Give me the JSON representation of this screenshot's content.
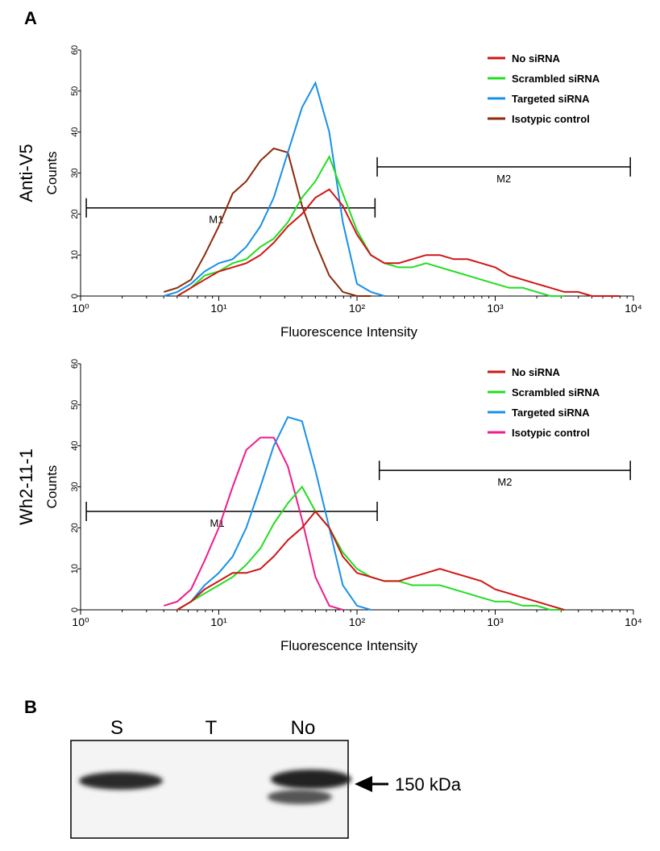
{
  "panel_a_label": "A",
  "panel_b_label": "B",
  "chart_data": [
    {
      "type": "line",
      "side_label": "Anti-V5",
      "y_label": "Counts",
      "x_label": "Fluorescence Intensity",
      "log_x": true,
      "legend": "upper right",
      "xlim": [
        1,
        10000
      ],
      "ylim": [
        0,
        60
      ],
      "xticks": [
        {
          "value": 1,
          "label": "10⁰"
        },
        {
          "value": 10,
          "label": "10¹"
        },
        {
          "value": 100,
          "label": "10²"
        },
        {
          "value": 1000,
          "label": "10³"
        },
        {
          "value": 10000,
          "label": "10⁴"
        }
      ],
      "yticks": [
        0,
        10,
        20,
        30,
        40,
        50,
        60
      ],
      "x": [
        4,
        5,
        6.3,
        7.9,
        10,
        12.6,
        15.8,
        20,
        25,
        31.6,
        40,
        50,
        63,
        79,
        100,
        126,
        158,
        200,
        251,
        316,
        398,
        501,
        631,
        794,
        1000,
        1259,
        1585,
        1995,
        2512,
        3162,
        3981,
        5012,
        6310,
        7943
      ],
      "series": [
        {
          "name": "No siRNA",
          "color": "#d01515",
          "values": [
            null,
            0,
            2,
            4,
            6,
            7,
            8,
            10,
            13,
            17,
            20,
            24,
            26,
            22,
            15,
            10,
            8,
            8,
            9,
            10,
            10,
            9,
            9,
            8,
            7,
            5,
            4,
            3,
            2,
            1,
            1,
            0,
            0,
            0
          ]
        },
        {
          "name": "Scrambled siRNA",
          "color": "#22dd22",
          "values": [
            null,
            0,
            2,
            5,
            6,
            8,
            9,
            12,
            14,
            18,
            24,
            28,
            34,
            25,
            16,
            10,
            8,
            7,
            7,
            8,
            7,
            6,
            5,
            4,
            3,
            2,
            2,
            1,
            0,
            0,
            null,
            null,
            null,
            null
          ]
        },
        {
          "name": "Targeted siRNA",
          "color": "#1890e8",
          "values": [
            0,
            1,
            3,
            6,
            8,
            9,
            12,
            17,
            24,
            35,
            46,
            52,
            40,
            18,
            3,
            1,
            0,
            null,
            null,
            null,
            null,
            null,
            null,
            null,
            null,
            null,
            null,
            null,
            null,
            null,
            null,
            null,
            null,
            null
          ]
        },
        {
          "name": "Isotypic control",
          "color": "#8b2a0a",
          "values": [
            1,
            2,
            4,
            10,
            17,
            25,
            28,
            33,
            36,
            35,
            22,
            13,
            5,
            1,
            0,
            0,
            null,
            null,
            null,
            null,
            null,
            null,
            null,
            null,
            null,
            null,
            null,
            null,
            null,
            null,
            null,
            null,
            null,
            null
          ]
        }
      ],
      "markers": [
        {
          "label": "M1",
          "range": [
            1.1,
            135
          ],
          "y": 21.5
        },
        {
          "label": "M2",
          "range": [
            140,
            9500
          ],
          "y": 31.5
        }
      ]
    },
    {
      "type": "line",
      "side_label": "Wh2-11-1",
      "y_label": "Counts",
      "x_label": "Fluorescence Intensity",
      "log_x": true,
      "legend": "upper right",
      "xlim": [
        1,
        10000
      ],
      "ylim": [
        0,
        60
      ],
      "xticks": [
        {
          "value": 1,
          "label": "10⁰"
        },
        {
          "value": 10,
          "label": "10¹"
        },
        {
          "value": 100,
          "label": "10²"
        },
        {
          "value": 1000,
          "label": "10³"
        },
        {
          "value": 10000,
          "label": "10⁴"
        }
      ],
      "yticks": [
        0,
        10,
        20,
        30,
        40,
        50,
        60
      ],
      "x": [
        4,
        5,
        6.3,
        7.9,
        10,
        12.6,
        15.8,
        20,
        25,
        31.6,
        40,
        50,
        63,
        79,
        100,
        126,
        158,
        200,
        251,
        316,
        398,
        501,
        631,
        794,
        1000,
        1259,
        1585,
        1995,
        2512,
        3162,
        3981,
        5012,
        6310,
        7943
      ],
      "series": [
        {
          "name": "No siRNA",
          "color": "#d01515",
          "values": [
            null,
            0,
            2,
            5,
            7,
            9,
            9,
            10,
            13,
            17,
            20,
            24,
            20,
            13,
            9,
            8,
            7,
            7,
            8,
            9,
            10,
            9,
            8,
            7,
            5,
            4,
            3,
            2,
            1,
            0,
            null,
            null,
            null,
            null
          ]
        },
        {
          "name": "Scrambled siRNA",
          "color": "#22dd22",
          "values": [
            null,
            0,
            2,
            4,
            6,
            8,
            11,
            15,
            21,
            26,
            30,
            24,
            20,
            14,
            10,
            8,
            7,
            7,
            6,
            6,
            6,
            5,
            4,
            3,
            2,
            2,
            1,
            1,
            0,
            0,
            null,
            null,
            null,
            null
          ]
        },
        {
          "name": "Targeted siRNA",
          "color": "#1890e8",
          "values": [
            null,
            0,
            2,
            6,
            9,
            13,
            20,
            30,
            40,
            47,
            46,
            34,
            20,
            6,
            1,
            0,
            null,
            null,
            null,
            null,
            null,
            null,
            null,
            null,
            null,
            null,
            null,
            null,
            null,
            null,
            null,
            null,
            null,
            null
          ]
        },
        {
          "name": "Isotypic control",
          "color": "#ee1c8c",
          "values": [
            1,
            2,
            5,
            12,
            20,
            30,
            39,
            42,
            42,
            35,
            22,
            8,
            1,
            0,
            null,
            null,
            null,
            null,
            null,
            null,
            null,
            null,
            null,
            null,
            null,
            null,
            null,
            null,
            null,
            null,
            null,
            null,
            null,
            null
          ]
        }
      ],
      "markers": [
        {
          "label": "M1",
          "range": [
            1.1,
            140
          ],
          "y": 24
        },
        {
          "label": "M2",
          "range": [
            145,
            9500
          ],
          "y": 34
        }
      ]
    }
  ],
  "blot": {
    "lanes": [
      "S",
      "T",
      "No"
    ],
    "marker_label": "150 kDa"
  }
}
